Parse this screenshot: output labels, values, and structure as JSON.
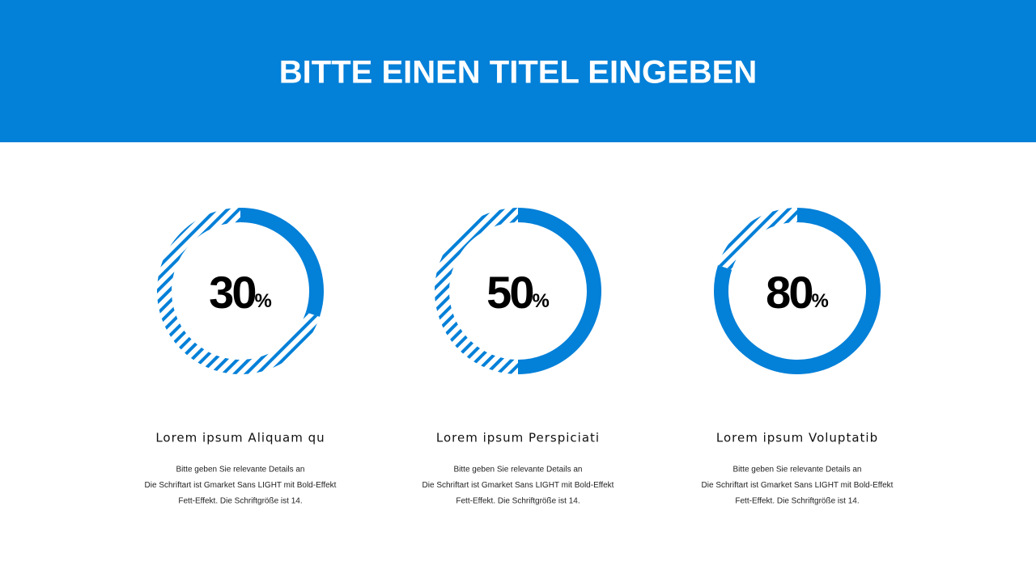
{
  "header": {
    "title": "BITTE EINEN TITEL EINGEBEN"
  },
  "gauges": [
    {
      "value": 30,
      "unit": "%",
      "title": "Lorem ipsum Aliquam qu",
      "lines": [
        "Bitte geben Sie relevante Details an",
        "Die Schriftart ist Gmarket Sans LIGHT mit Bold-Effekt",
        "Fett-Effekt. Die Schriftgröße ist 14."
      ]
    },
    {
      "value": 50,
      "unit": "%",
      "title": "Lorem ipsum Perspiciati",
      "lines": [
        "Bitte geben Sie relevante Details an",
        "Die Schriftart ist Gmarket Sans LIGHT mit Bold-Effekt",
        "Fett-Effekt. Die Schriftgröße ist 14."
      ]
    },
    {
      "value": 80,
      "unit": "%",
      "title": "Lorem ipsum Voluptatib",
      "lines": [
        "Bitte geben Sie relevante Details an",
        "Die Schriftart ist Gmarket Sans LIGHT mit Bold-Effekt",
        "Fett-Effekt. Die Schriftgröße ist 14."
      ]
    }
  ]
}
